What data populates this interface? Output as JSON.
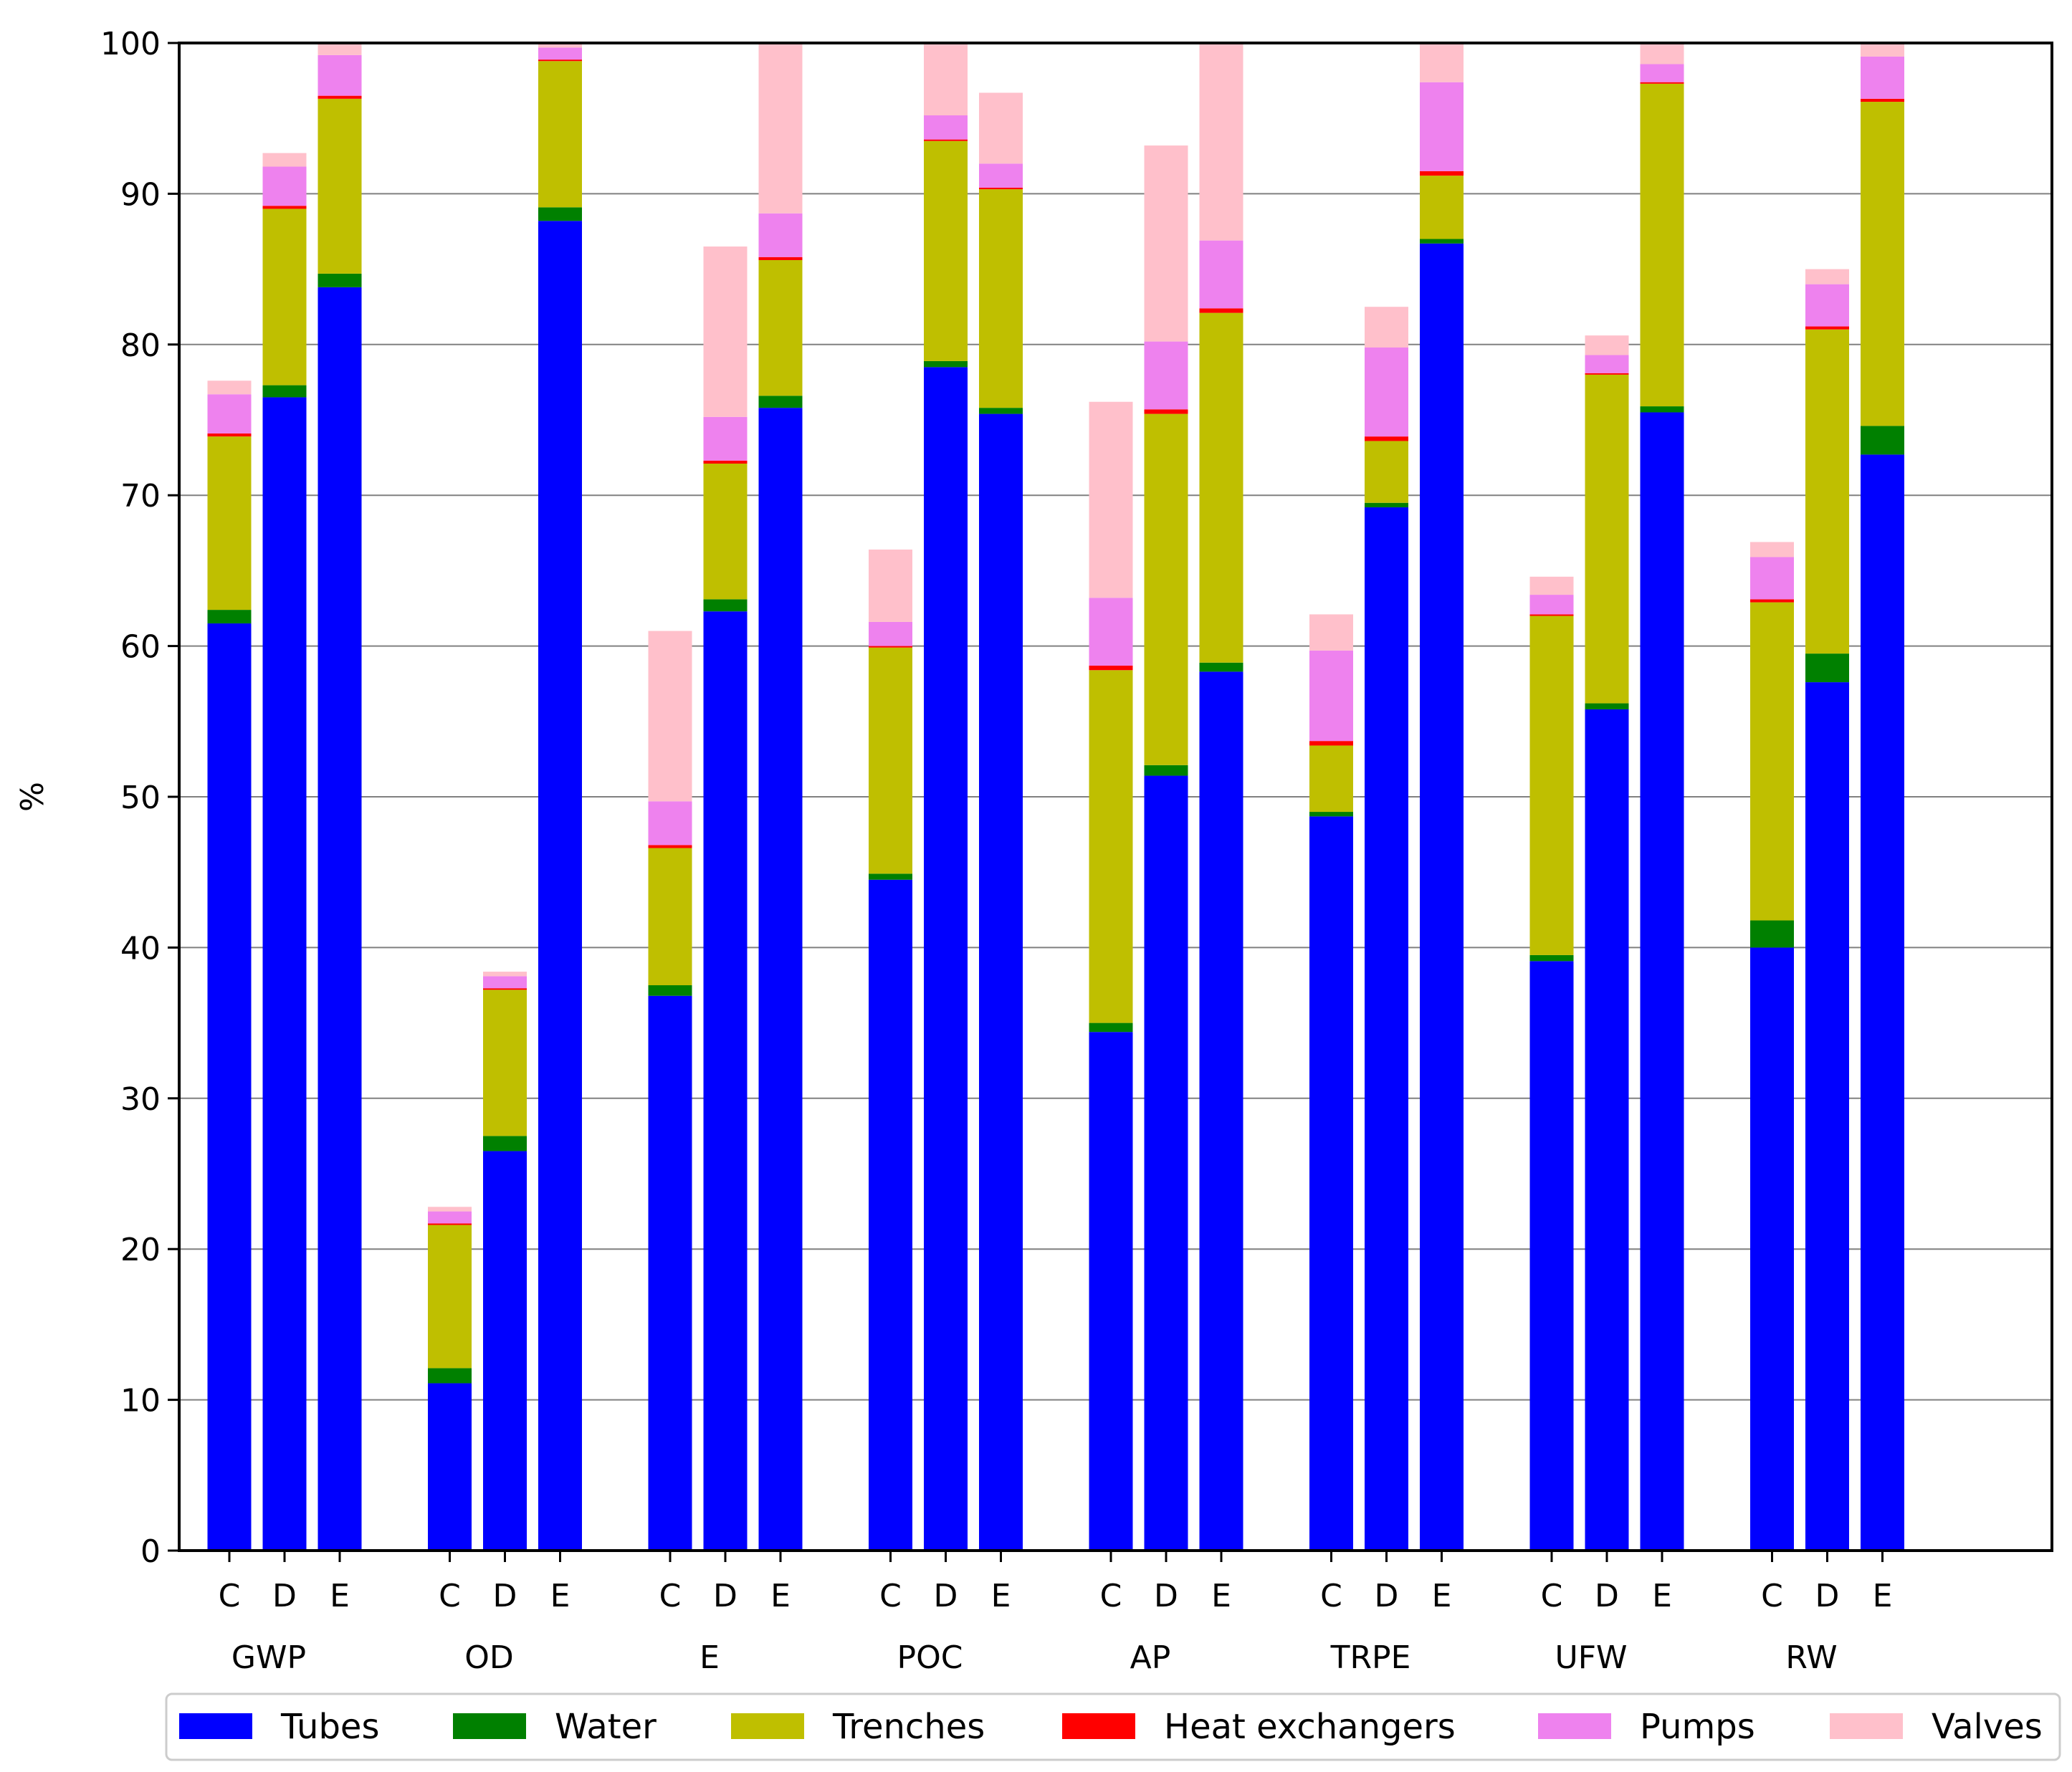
{
  "chart_data": {
    "type": "bar",
    "stacked": true,
    "title": "",
    "xlabel": "",
    "ylabel": "%",
    "ylim": [
      0,
      100
    ],
    "yticks": [
      0,
      10,
      20,
      30,
      40,
      50,
      60,
      70,
      80,
      90,
      100
    ],
    "grid": "horizontal",
    "legend_position": "bottom",
    "groups": [
      "GWP",
      "OD",
      "E",
      "POC",
      "AP",
      "TRPE",
      "UFW",
      "RW"
    ],
    "bar_labels": [
      "C",
      "D",
      "E"
    ],
    "colors": {
      "Tubes": "#0000ff",
      "Water": "#008000",
      "Trenches": "#bfbf00",
      "Heat exchangers": "#ff0000",
      "Pumps": "#ee82ee",
      "Valves": "#ffc0cb"
    },
    "series": [
      {
        "name": "Tubes",
        "values": [
          [
            61.5,
            76.5,
            83.8
          ],
          [
            11.1,
            26.5,
            88.2
          ],
          [
            36.8,
            62.3,
            75.8
          ],
          [
            44.5,
            78.5,
            75.4
          ],
          [
            34.4,
            51.4,
            58.3
          ],
          [
            48.7,
            69.2,
            86.7
          ],
          [
            39.1,
            55.8,
            75.5
          ],
          [
            40.0,
            57.6,
            72.7
          ]
        ]
      },
      {
        "name": "Water",
        "values": [
          [
            0.9,
            0.8,
            0.9
          ],
          [
            1.0,
            1.0,
            0.9
          ],
          [
            0.7,
            0.8,
            0.8
          ],
          [
            0.4,
            0.4,
            0.4
          ],
          [
            0.6,
            0.7,
            0.6
          ],
          [
            0.3,
            0.3,
            0.3
          ],
          [
            0.4,
            0.4,
            0.4
          ],
          [
            1.8,
            1.9,
            1.9
          ]
        ]
      },
      {
        "name": "Trenches",
        "values": [
          [
            11.5,
            11.7,
            11.6
          ],
          [
            9.5,
            9.7,
            9.7
          ],
          [
            9.1,
            9.0,
            9.0
          ],
          [
            15.0,
            14.6,
            14.5
          ],
          [
            23.4,
            23.3,
            23.2
          ],
          [
            4.4,
            4.1,
            4.2
          ],
          [
            22.5,
            21.8,
            21.4
          ],
          [
            21.1,
            21.5,
            21.5
          ]
        ]
      },
      {
        "name": "Heat exchangers",
        "values": [
          [
            0.2,
            0.2,
            0.2
          ],
          [
            0.1,
            0.1,
            0.1
          ],
          [
            0.2,
            0.2,
            0.2
          ],
          [
            0.1,
            0.1,
            0.1
          ],
          [
            0.3,
            0.3,
            0.3
          ],
          [
            0.3,
            0.3,
            0.3
          ],
          [
            0.1,
            0.1,
            0.1
          ],
          [
            0.2,
            0.2,
            0.2
          ]
        ]
      },
      {
        "name": "Pumps",
        "values": [
          [
            2.6,
            2.6,
            2.7
          ],
          [
            0.8,
            0.8,
            0.8
          ],
          [
            2.9,
            2.9,
            2.9
          ],
          [
            1.6,
            1.6,
            1.6
          ],
          [
            4.5,
            4.5,
            4.5
          ],
          [
            6.0,
            5.9,
            5.9
          ],
          [
            1.3,
            1.2,
            1.2
          ],
          [
            2.8,
            2.8,
            2.8
          ]
        ]
      },
      {
        "name": "Valves",
        "values": [
          [
            0.9,
            0.9,
            0.8
          ],
          [
            0.3,
            0.3,
            0.3
          ],
          [
            11.3,
            11.3,
            11.3
          ],
          [
            4.8,
            4.7,
            4.7
          ],
          [
            13.0,
            13.0,
            13.1
          ],
          [
            2.4,
            2.7,
            2.6
          ],
          [
            1.2,
            1.3,
            1.4
          ],
          [
            1.0,
            1.0,
            0.9
          ]
        ]
      }
    ]
  }
}
